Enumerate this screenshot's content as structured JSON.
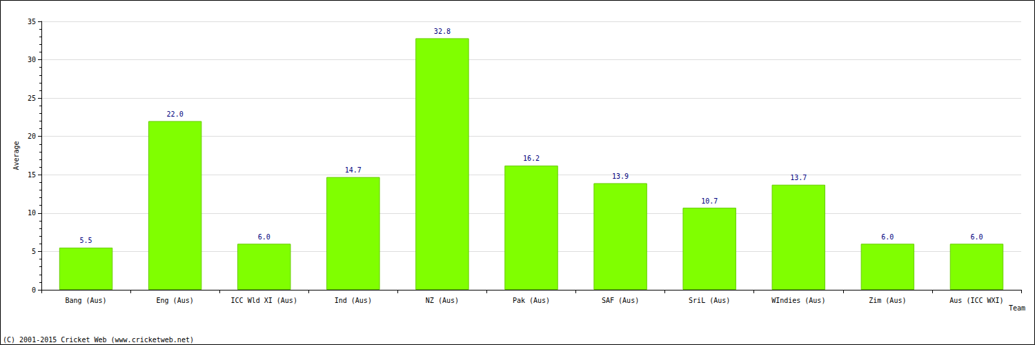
{
  "chart_data": {
    "type": "bar",
    "categories": [
      "Bang (Aus)",
      "Eng (Aus)",
      "ICC Wld XI (Aus)",
      "Ind (Aus)",
      "NZ (Aus)",
      "Pak (Aus)",
      "SAF (Aus)",
      "SriL (Aus)",
      "WIndies (Aus)",
      "Zim (Aus)",
      "Aus (ICC WXI)"
    ],
    "values": [
      5.5,
      22.0,
      6.0,
      14.7,
      32.8,
      16.2,
      13.9,
      10.7,
      13.7,
      6.0,
      6.0
    ],
    "value_labels": [
      "5.5",
      "22.0",
      "6.0",
      "14.7",
      "32.8",
      "16.2",
      "13.9",
      "10.7",
      "13.7",
      "6.0",
      "6.0"
    ],
    "color": "#80ff00",
    "x_label": "Team",
    "y_label": "Average",
    "ylim": [
      0,
      35
    ],
    "yticks": [
      0,
      5,
      10,
      15,
      20,
      25,
      30,
      35
    ],
    "grid": true,
    "data_labels": true,
    "annotations": [
      "(C) 2001-2015 Cricket Web (www.cricketweb.net)"
    ]
  }
}
